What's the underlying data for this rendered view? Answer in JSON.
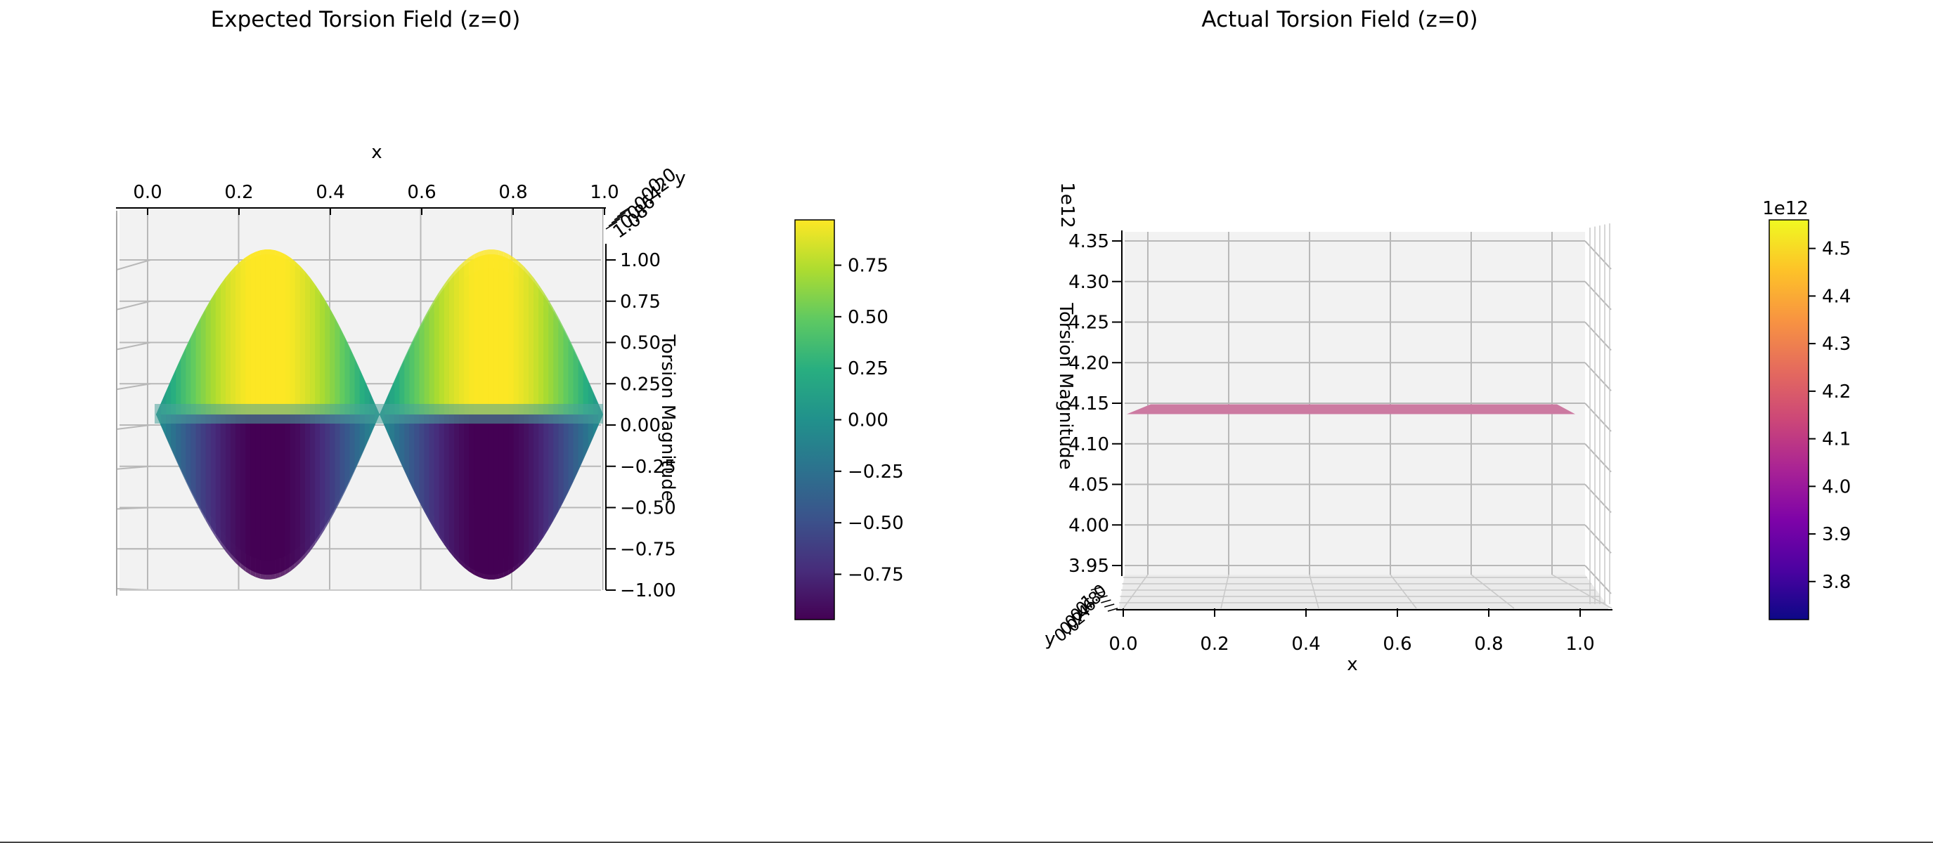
{
  "chart_data": [
    {
      "type": "surface3d",
      "title": "Expected Torsion Field (z=0)",
      "xlabel": "x",
      "ylabel": "y",
      "zlabel": "Torsion Magnitude",
      "x_ticks": [
        "0.0",
        "0.2",
        "0.4",
        "0.6",
        "0.8",
        "1.0"
      ],
      "y_ticks": [
        "0.0",
        "0.2",
        "0.4",
        "0.6",
        "0.8",
        "1.0"
      ],
      "z_ticks": [
        "1.00",
        "0.75",
        "0.50",
        "0.25",
        "0.00",
        "−0.25",
        "−0.50",
        "−0.75",
        "−1.00"
      ],
      "zlim": [
        -1.0,
        1.0
      ],
      "function": "sin(2πx)·cos(2πy)",
      "colormap": "viridis",
      "colorbar": {
        "range": [
          -0.97,
          0.97
        ],
        "ticks": [
          "0.75",
          "0.50",
          "0.25",
          "0.00",
          "−0.25",
          "−0.50",
          "−0.75"
        ],
        "tick_values": [
          0.75,
          0.5,
          0.25,
          0.0,
          -0.25,
          -0.5,
          -0.75
        ]
      }
    },
    {
      "type": "surface3d",
      "title": "Actual Torsion Field (z=0)",
      "xlabel": "x",
      "ylabel": "y",
      "zlabel": "Torsion Magnitude",
      "z_offset_label": "1e12",
      "x_ticks": [
        "0.0",
        "0.2",
        "0.4",
        "0.6",
        "0.8",
        "1.0"
      ],
      "y_ticks": [
        "0.0",
        "0.2",
        "0.4",
        "0.6",
        "0.8",
        "1.0"
      ],
      "z_ticks": [
        "4.35",
        "4.30",
        "4.25",
        "4.20",
        "4.15",
        "4.10",
        "4.05",
        "4.00",
        "3.95"
      ],
      "zlim": [
        3.935,
        4.36
      ],
      "surface_value": 4.14,
      "surface_color": "#cc7aa1",
      "colormap": "plasma",
      "colorbar": {
        "offset_label": "1e12",
        "range": [
          3.72,
          4.56
        ],
        "ticks": [
          "4.5",
          "4.4",
          "4.3",
          "4.2",
          "4.1",
          "4.0",
          "3.9",
          "3.8"
        ],
        "tick_values": [
          4.5,
          4.4,
          4.3,
          4.2,
          4.1,
          4.0,
          3.9,
          3.8
        ]
      }
    }
  ]
}
